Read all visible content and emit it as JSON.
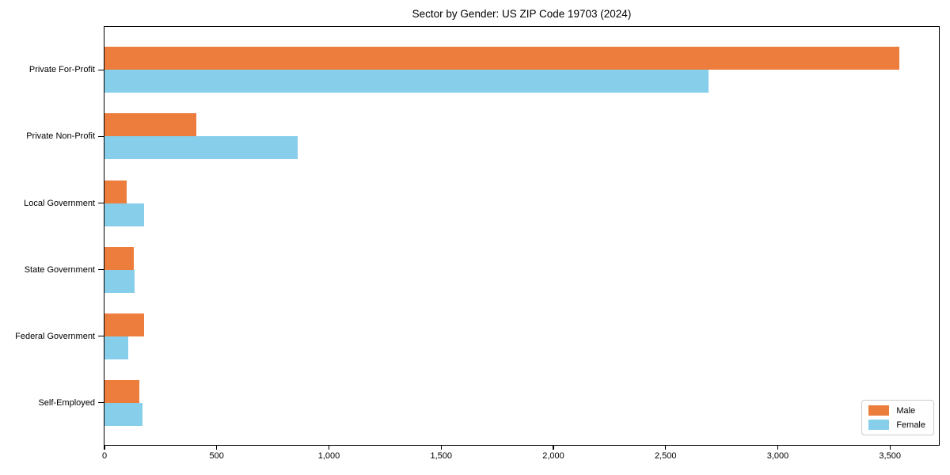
{
  "chart_data": {
    "type": "bar",
    "orientation": "horizontal",
    "title": "Sector by Gender: US ZIP Code 19703 (2024)",
    "xlabel": "",
    "ylabel": "",
    "categories": [
      "Private For-Profit",
      "Private Non-Profit",
      "Local Government",
      "State Government",
      "Federal Government",
      "Self-Employed"
    ],
    "series": [
      {
        "name": "Male",
        "color": "#ec7d3c",
        "values": [
          3540,
          410,
          100,
          130,
          175,
          155
        ]
      },
      {
        "name": "Female",
        "color": "#87ceeb",
        "values": [
          2690,
          860,
          175,
          135,
          105,
          170
        ]
      }
    ],
    "xlim": [
      0,
      3718
    ],
    "xticks": [
      0,
      500,
      1000,
      1500,
      2000,
      2500,
      3000,
      3500
    ],
    "xtick_labels": [
      "0",
      "500",
      "1,000",
      "1,500",
      "2,000",
      "2,500",
      "3,000",
      "3,500"
    ],
    "grid": false,
    "legend_position": "lower right"
  }
}
